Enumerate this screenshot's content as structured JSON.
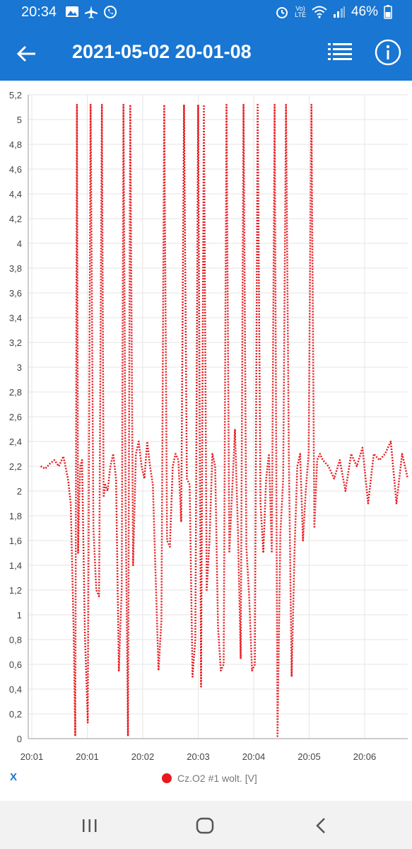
{
  "status": {
    "time": "20:34",
    "battery": "46%",
    "lte": "LTE",
    "volte": "Vo)"
  },
  "header": {
    "title": "2021-05-02 20-01-08"
  },
  "chart_data": {
    "type": "line",
    "title": "",
    "xlabel": "",
    "ylabel": "",
    "grid": true,
    "ylim": [
      0,
      5.2
    ],
    "y_ticks": [
      "0",
      "0,2",
      "0,4",
      "0,6",
      "0,8",
      "1",
      "1,2",
      "1,4",
      "1,6",
      "1,8",
      "2",
      "2,2",
      "2,4",
      "2,6",
      "2,8",
      "3",
      "3,2",
      "3,4",
      "3,6",
      "3,8",
      "4",
      "4,2",
      "4,4",
      "4,6",
      "4,8",
      "5",
      "5,2"
    ],
    "x_ticks": [
      "20:01",
      "20:01",
      "20:02",
      "20:03",
      "20:04",
      "20:05",
      "20:06"
    ],
    "xlim": [
      0,
      6.7
    ],
    "color": "#e8191e",
    "legend_position": "bottom",
    "series": [
      {
        "name": "Cz.O2 #1 wolt. [V]",
        "x": [
          0.22,
          0.3,
          0.38,
          0.46,
          0.54,
          0.62,
          0.7,
          0.75,
          0.8,
          0.83,
          0.86,
          0.88,
          0.9,
          0.92,
          0.95,
          1.0,
          1.05,
          1.1,
          1.15,
          1.2,
          1.25,
          1.3,
          1.33,
          1.36,
          1.4,
          1.45,
          1.5,
          1.55,
          1.6,
          1.65,
          1.68,
          1.72,
          1.76,
          1.8,
          1.85,
          1.9,
          1.95,
          2.0,
          2.05,
          2.1,
          2.15,
          2.2,
          2.25,
          2.3,
          2.35,
          2.4,
          2.45,
          2.5,
          2.55,
          2.6,
          2.65,
          2.7,
          2.75,
          2.8,
          2.85,
          2.9,
          2.95,
          3.0,
          3.05,
          3.1,
          3.15,
          3.2,
          3.25,
          3.3,
          3.35,
          3.4,
          3.45,
          3.5,
          3.55,
          3.6,
          3.65,
          3.7,
          3.75,
          3.8,
          3.85,
          3.9,
          3.95,
          4.0,
          4.05,
          4.1,
          4.15,
          4.2,
          4.25,
          4.3,
          4.35,
          4.4,
          4.45,
          4.5,
          4.55,
          4.6,
          4.65,
          4.7,
          4.75,
          4.8,
          4.85,
          4.9,
          4.95,
          5.0,
          5.05,
          5.1,
          5.15,
          5.2,
          5.3,
          5.4,
          5.5,
          5.6,
          5.7,
          5.8,
          5.9,
          6.0,
          6.1,
          6.2,
          6.3,
          6.4,
          6.5,
          6.6,
          6.7
        ],
        "y": [
          2.2,
          2.18,
          2.22,
          2.25,
          2.2,
          2.28,
          2.1,
          1.9,
          0.9,
          0.02,
          5.12,
          1.5,
          1.95,
          2.2,
          2.25,
          0.85,
          0.13,
          5.12,
          1.7,
          1.2,
          1.15,
          5.12,
          1.95,
          2.05,
          2.0,
          2.2,
          2.3,
          2.1,
          0.55,
          1.2,
          5.12,
          1.8,
          0.02,
          5.12,
          1.4,
          2.3,
          2.4,
          2.2,
          2.1,
          2.4,
          2.2,
          2.05,
          1.3,
          0.55,
          0.95,
          5.12,
          1.6,
          1.55,
          2.2,
          2.3,
          2.25,
          1.75,
          5.12,
          2.1,
          2.05,
          0.5,
          0.8,
          5.12,
          0.42,
          5.12,
          1.2,
          1.6,
          2.3,
          2.2,
          0.9,
          0.55,
          0.6,
          5.12,
          1.5,
          2.0,
          2.5,
          1.7,
          0.65,
          5.12,
          1.55,
          1.15,
          0.55,
          0.6,
          5.12,
          1.9,
          1.5,
          2.1,
          2.3,
          1.5,
          5.12,
          0.02,
          1.65,
          2.1,
          5.12,
          2.3,
          0.5,
          1.5,
          2.2,
          2.3,
          1.6,
          2.0,
          2.3,
          5.12,
          1.7,
          2.25,
          2.3,
          2.25,
          2.2,
          2.1,
          2.25,
          2.0,
          2.3,
          2.2,
          2.35,
          1.9,
          2.3,
          2.25,
          2.3,
          2.4,
          1.9,
          2.3,
          2.1
        ]
      }
    ]
  },
  "x_toggle_label": "X"
}
